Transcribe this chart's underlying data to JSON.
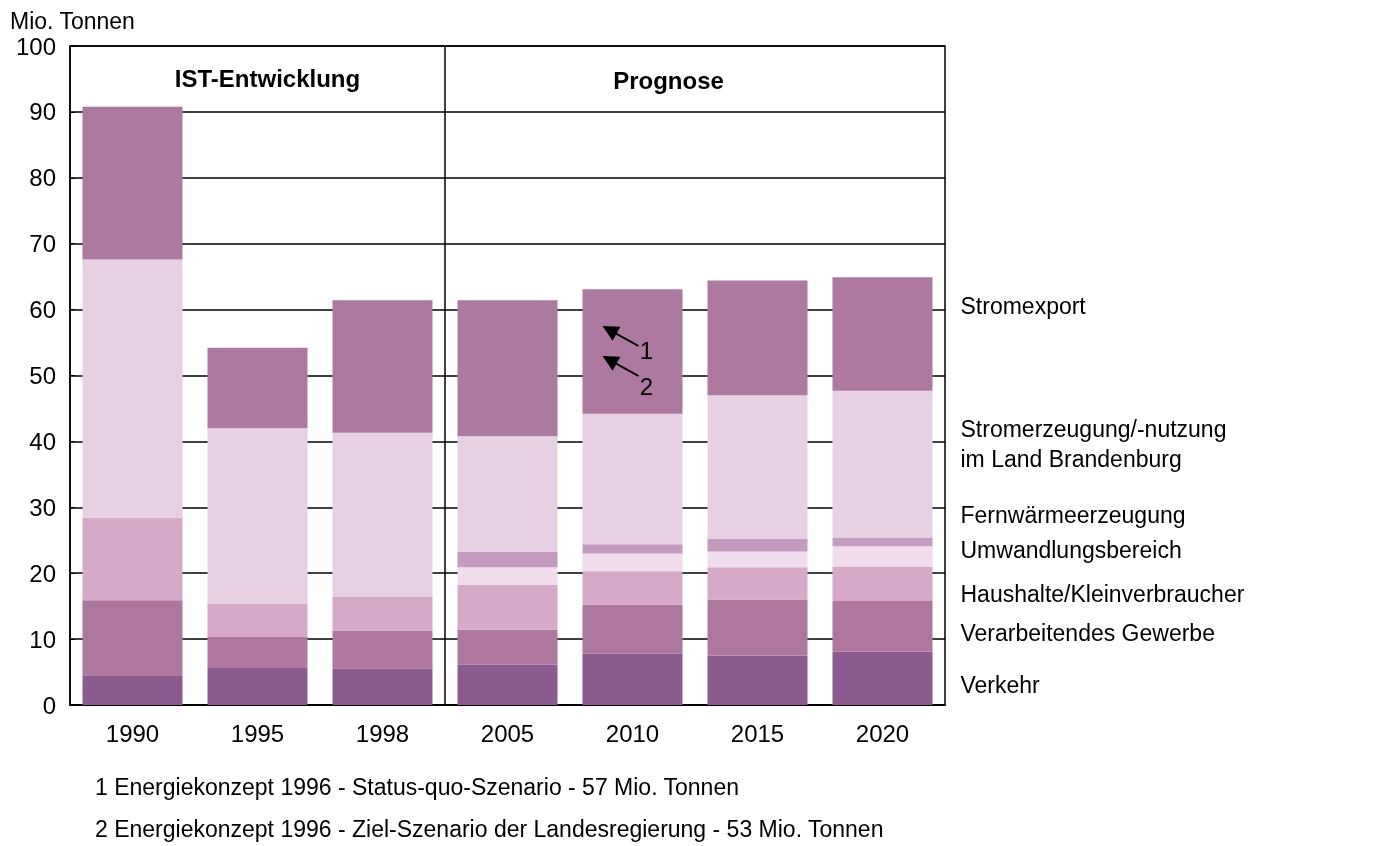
{
  "chart_data": {
    "type": "bar",
    "stacked": true,
    "ylabel": "Mio. Tonnen",
    "categories": [
      "1990",
      "1995",
      "1998",
      "2005",
      "2010",
      "2015",
      "2020"
    ],
    "series": [
      {
        "name": "Verkehr",
        "color": "#8b5a8f",
        "values": [
          4.5,
          5.6,
          5.5,
          6.1,
          7.8,
          7.5,
          8.1
        ]
      },
      {
        "name": "Verarbeitendes Gewerbe",
        "color": "#ad77a0",
        "values": [
          11.4,
          4.8,
          5.8,
          5.3,
          7.4,
          8.5,
          7.7
        ]
      },
      {
        "name": "Haushalte/Kleinverbraucher",
        "color": "#d6a9c9",
        "values": [
          12.5,
          5.0,
          5.1,
          6.8,
          5.1,
          4.9,
          5.2
        ]
      },
      {
        "name": "Umwandlungsbereich",
        "color": "#f0dcec",
        "values": [
          0,
          0,
          0,
          2.7,
          2.7,
          2.4,
          3.1
        ]
      },
      {
        "name": "Fernwärmeerzeugung",
        "color": "#c49ac0",
        "values": [
          0,
          0,
          0,
          2.3,
          1.4,
          1.9,
          1.3
        ]
      },
      {
        "name": "Stromerzeugung/-nutzung im Land Brandenburg",
        "color": "#e7d0e3",
        "values": [
          39.2,
          26.6,
          24.9,
          17.6,
          19.8,
          21.8,
          22.3
        ]
      },
      {
        "name": "Stromexport",
        "color": "#ae79a1",
        "values": [
          23.2,
          12.2,
          20.1,
          20.6,
          18.9,
          17.4,
          17.2
        ]
      }
    ],
    "ylim": [
      0,
      100
    ],
    "yticks": [
      0,
      10,
      20,
      30,
      40,
      50,
      60,
      70,
      80,
      90,
      100
    ],
    "grid": "y",
    "legend": false,
    "annotations": [
      "IST-Entwicklung",
      "Prognose",
      "1 Energiekonzept 1996 - Status-quo-Szenario - 57 Mio. Tonnen",
      "2 Energiekonzept 1996 - Ziel-Szenario der Landesregierung - 53 Mio. Tonnen",
      "1",
      "2"
    ]
  }
}
